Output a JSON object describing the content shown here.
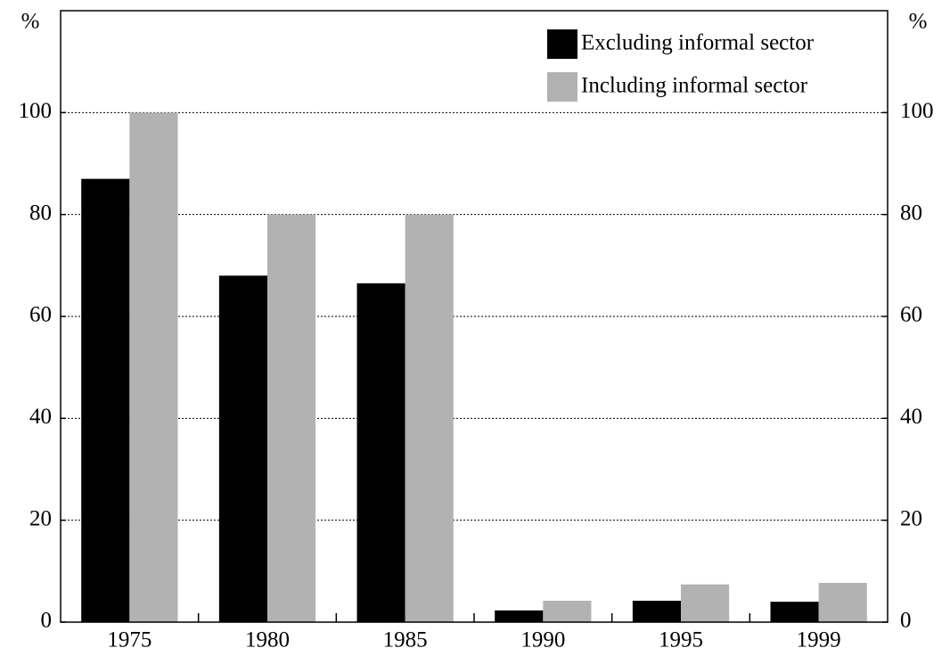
{
  "chart_data": {
    "type": "bar",
    "ylabel": "%",
    "y2label": "%",
    "categories": [
      "1975",
      "1980",
      "1985",
      "1990",
      "1995",
      "1999"
    ],
    "series": [
      {
        "name": "Excluding informal sector",
        "color": "#000000",
        "values": [
          87,
          68,
          66.5,
          2.3,
          4.2,
          4.0
        ]
      },
      {
        "name": "Including informal sector",
        "color": "#b2b2b2",
        "values": [
          100,
          80,
          80,
          4.2,
          7.4,
          7.7
        ]
      }
    ],
    "ylim": [
      0,
      120
    ],
    "yticks": [
      0,
      20,
      40,
      60,
      80,
      100
    ],
    "y2lim": [
      0,
      120
    ],
    "y2ticks": [
      0,
      20,
      40,
      60,
      80,
      100
    ],
    "grid": true,
    "legend": "top-right"
  }
}
